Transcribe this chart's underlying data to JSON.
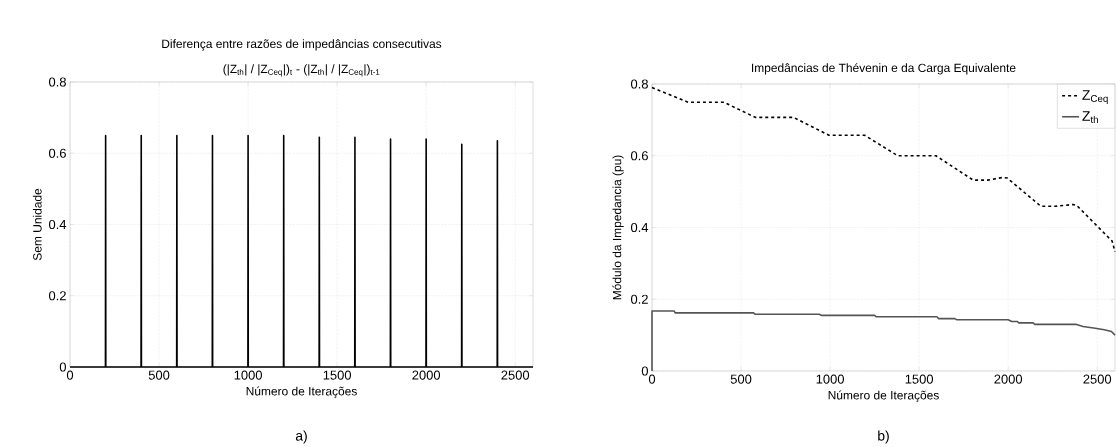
{
  "chart_data": [
    {
      "type": "line",
      "title": "Diferença entre razões de impedâncias consecutivas",
      "subtitle": "(|Z$_{th}$| / |Z$_{Ceq}$|)$_{t}$ - (|Z$_{th}$| / |Z$_{Ceq}$|)$_{t-1}$",
      "xlabel": "Número de Iterações",
      "ylabel": "Sem Unidade",
      "annotations": [
        "a)"
      ],
      "x": [
        0,
        199,
        200,
        201,
        399,
        400,
        401,
        599,
        600,
        601,
        799,
        800,
        801,
        999,
        1000,
        1001,
        1199,
        1200,
        1201,
        1399,
        1400,
        1401,
        1599,
        1600,
        1601,
        1799,
        1800,
        1801,
        1999,
        2000,
        2001,
        2199,
        2200,
        2201,
        2399,
        2400,
        2401,
        2600
      ],
      "values": [
        0,
        0,
        0.65,
        0,
        0,
        0.65,
        0,
        0,
        0.65,
        0,
        0,
        0.65,
        0,
        0,
        0.65,
        0,
        0,
        0.65,
        0,
        0,
        0.645,
        0,
        0,
        0.645,
        0,
        0,
        0.64,
        0,
        0,
        0.64,
        0,
        0,
        0.625,
        0,
        0,
        0.635,
        0,
        0
      ],
      "color": "#000000",
      "xlim": [
        0,
        2600
      ],
      "ylim": [
        0,
        0.8
      ],
      "xticks": [
        0,
        500,
        1000,
        1500,
        2000,
        2500
      ],
      "yticks": [
        0,
        0.2,
        0.4,
        0.6,
        0.8
      ],
      "grid": true
    },
    {
      "type": "line",
      "title": "Impedâncias de Thévenin e da Carga Equivalente",
      "xlabel": "Número de Iterações",
      "ylabel": "Módulo da Impedancia (pu)",
      "annotations": [
        "b)"
      ],
      "series": [
        {
          "name": "Z$_{Ceq}$",
          "color": "#000000",
          "line_style": "dashed",
          "x": [
            0,
            100,
            204,
            404,
            580,
            794,
            994,
            1194,
            1380,
            1594,
            1804,
            1884,
            1964,
            1994,
            2184,
            2264,
            2364,
            2384,
            2524,
            2584,
            2600
          ],
          "values": [
            0.79,
            0.77,
            0.749,
            0.749,
            0.707,
            0.707,
            0.657,
            0.657,
            0.6,
            0.6,
            0.532,
            0.532,
            0.539,
            0.538,
            0.459,
            0.459,
            0.464,
            0.462,
            0.392,
            0.362,
            0.332
          ]
        },
        {
          "name": "Z$_{th}$",
          "color": "#555555",
          "line_style": "solid",
          "x": [
            0,
            0,
            125,
            130,
            570,
            580,
            940,
            950,
            1250,
            1260,
            1600,
            1610,
            1700,
            1710,
            2000,
            2020,
            2050,
            2060,
            2140,
            2150,
            2380,
            2420,
            2480,
            2540,
            2580,
            2600
          ],
          "values": [
            0,
            0.167,
            0.167,
            0.162,
            0.162,
            0.158,
            0.158,
            0.155,
            0.155,
            0.151,
            0.151,
            0.146,
            0.146,
            0.143,
            0.143,
            0.138,
            0.138,
            0.134,
            0.134,
            0.13,
            0.13,
            0.124,
            0.12,
            0.115,
            0.11,
            0.1
          ]
        }
      ],
      "xlim": [
        0,
        2600
      ],
      "ylim": [
        0,
        0.8
      ],
      "xticks": [
        0,
        500,
        1000,
        1500,
        2000,
        2500
      ],
      "yticks": [
        0,
        0.2,
        0.4,
        0.6,
        0.8
      ],
      "grid": true,
      "legend": "top right"
    }
  ]
}
